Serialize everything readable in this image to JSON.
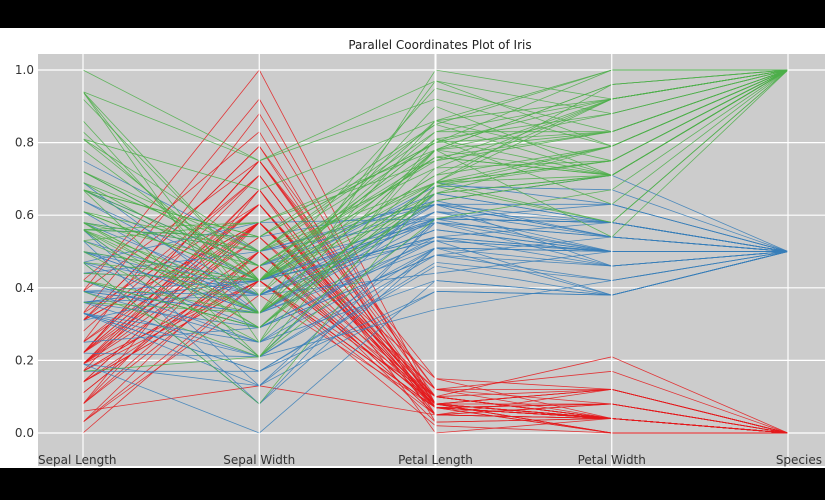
{
  "chart_data": {
    "type": "parallel-coordinates",
    "title": "Parallel Coordinates Plot of Iris",
    "axes": [
      "Sepal Length",
      "Sepal Width",
      "Petal Length",
      "Petal Width",
      "Species"
    ],
    "ylim": [
      0.0,
      1.0
    ],
    "yticks": [
      "0.0",
      "0.2",
      "0.4",
      "0.6",
      "0.8",
      "1.0"
    ],
    "grid": true,
    "series": [
      {
        "color": "#e41a1c",
        "species_value": 0.0,
        "lines": [
          [
            0.22,
            0.63,
            0.07,
            0.04,
            0.0
          ],
          [
            0.17,
            0.42,
            0.07,
            0.04,
            0.0
          ],
          [
            0.11,
            0.5,
            0.05,
            0.04,
            0.0
          ],
          [
            0.08,
            0.46,
            0.08,
            0.04,
            0.0
          ],
          [
            0.19,
            0.67,
            0.07,
            0.04,
            0.0
          ],
          [
            0.31,
            0.79,
            0.12,
            0.12,
            0.0
          ],
          [
            0.08,
            0.58,
            0.07,
            0.08,
            0.0
          ],
          [
            0.19,
            0.58,
            0.08,
            0.04,
            0.0
          ],
          [
            0.03,
            0.38,
            0.07,
            0.04,
            0.0
          ],
          [
            0.17,
            0.46,
            0.08,
            0.0,
            0.0
          ],
          [
            0.31,
            0.71,
            0.08,
            0.04,
            0.0
          ],
          [
            0.14,
            0.58,
            0.1,
            0.04,
            0.0
          ],
          [
            0.14,
            0.42,
            0.07,
            0.0,
            0.0
          ],
          [
            0.0,
            0.42,
            0.02,
            0.0,
            0.0
          ],
          [
            0.42,
            0.83,
            0.03,
            0.04,
            0.0
          ],
          [
            0.39,
            1.0,
            0.08,
            0.12,
            0.0
          ],
          [
            0.31,
            0.79,
            0.05,
            0.12,
            0.0
          ],
          [
            0.22,
            0.63,
            0.07,
            0.08,
            0.0
          ],
          [
            0.39,
            0.75,
            0.12,
            0.08,
            0.0
          ],
          [
            0.22,
            0.75,
            0.08,
            0.08,
            0.0
          ],
          [
            0.31,
            0.58,
            0.12,
            0.04,
            0.0
          ],
          [
            0.22,
            0.71,
            0.08,
            0.12,
            0.0
          ],
          [
            0.08,
            0.67,
            0.0,
            0.04,
            0.0
          ],
          [
            0.22,
            0.54,
            0.12,
            0.17,
            0.0
          ],
          [
            0.14,
            0.58,
            0.15,
            0.04,
            0.0
          ],
          [
            0.19,
            0.42,
            0.1,
            0.04,
            0.0
          ],
          [
            0.19,
            0.58,
            0.1,
            0.12,
            0.0
          ],
          [
            0.25,
            0.63,
            0.08,
            0.04,
            0.0
          ],
          [
            0.25,
            0.58,
            0.07,
            0.04,
            0.0
          ],
          [
            0.11,
            0.5,
            0.1,
            0.04,
            0.0
          ],
          [
            0.14,
            0.46,
            0.1,
            0.04,
            0.0
          ],
          [
            0.31,
            0.58,
            0.08,
            0.12,
            0.0
          ],
          [
            0.25,
            0.88,
            0.08,
            0.0,
            0.0
          ],
          [
            0.33,
            0.92,
            0.07,
            0.04,
            0.0
          ],
          [
            0.17,
            0.46,
            0.08,
            0.0,
            0.0
          ],
          [
            0.19,
            0.5,
            0.03,
            0.04,
            0.0
          ],
          [
            0.33,
            0.63,
            0.05,
            0.04,
            0.0
          ],
          [
            0.17,
            0.67,
            0.07,
            0.0,
            0.0
          ],
          [
            0.03,
            0.42,
            0.05,
            0.04,
            0.0
          ],
          [
            0.22,
            0.58,
            0.08,
            0.04,
            0.0
          ],
          [
            0.19,
            0.63,
            0.05,
            0.08,
            0.0
          ],
          [
            0.06,
            0.13,
            0.05,
            0.08,
            0.0
          ],
          [
            0.03,
            0.5,
            0.05,
            0.04,
            0.0
          ],
          [
            0.19,
            0.63,
            0.1,
            0.21,
            0.0
          ],
          [
            0.22,
            0.75,
            0.15,
            0.12,
            0.0
          ],
          [
            0.14,
            0.42,
            0.07,
            0.08,
            0.0
          ],
          [
            0.22,
            0.75,
            0.1,
            0.04,
            0.0
          ],
          [
            0.08,
            0.5,
            0.07,
            0.04,
            0.0
          ],
          [
            0.28,
            0.71,
            0.08,
            0.04,
            0.0
          ],
          [
            0.19,
            0.54,
            0.07,
            0.04,
            0.0
          ]
        ]
      },
      {
        "color": "#377eb8",
        "species_value": 0.5,
        "lines": [
          [
            0.75,
            0.5,
            0.63,
            0.54,
            0.5
          ],
          [
            0.58,
            0.5,
            0.59,
            0.58,
            0.5
          ],
          [
            0.72,
            0.46,
            0.66,
            0.58,
            0.5
          ],
          [
            0.33,
            0.13,
            0.51,
            0.5,
            0.5
          ],
          [
            0.61,
            0.33,
            0.61,
            0.58,
            0.5
          ],
          [
            0.39,
            0.33,
            0.59,
            0.5,
            0.5
          ],
          [
            0.56,
            0.54,
            0.63,
            0.63,
            0.5
          ],
          [
            0.17,
            0.17,
            0.39,
            0.38,
            0.5
          ],
          [
            0.64,
            0.38,
            0.61,
            0.5,
            0.5
          ],
          [
            0.25,
            0.29,
            0.49,
            0.54,
            0.5
          ],
          [
            0.19,
            0.0,
            0.42,
            0.38,
            0.5
          ],
          [
            0.44,
            0.42,
            0.54,
            0.58,
            0.5
          ],
          [
            0.47,
            0.08,
            0.51,
            0.38,
            0.5
          ],
          [
            0.5,
            0.38,
            0.63,
            0.54,
            0.5
          ],
          [
            0.36,
            0.38,
            0.44,
            0.5,
            0.5
          ],
          [
            0.67,
            0.46,
            0.58,
            0.54,
            0.5
          ],
          [
            0.36,
            0.42,
            0.59,
            0.58,
            0.5
          ],
          [
            0.42,
            0.29,
            0.53,
            0.38,
            0.5
          ],
          [
            0.53,
            0.08,
            0.59,
            0.58,
            0.5
          ],
          [
            0.36,
            0.21,
            0.49,
            0.42,
            0.5
          ],
          [
            0.44,
            0.5,
            0.64,
            0.71,
            0.5
          ],
          [
            0.5,
            0.33,
            0.51,
            0.5,
            0.5
          ],
          [
            0.56,
            0.21,
            0.66,
            0.58,
            0.5
          ],
          [
            0.5,
            0.33,
            0.63,
            0.46,
            0.5
          ],
          [
            0.58,
            0.38,
            0.56,
            0.5,
            0.5
          ],
          [
            0.64,
            0.42,
            0.58,
            0.54,
            0.5
          ],
          [
            0.69,
            0.33,
            0.64,
            0.54,
            0.5
          ],
          [
            0.67,
            0.42,
            0.68,
            0.67,
            0.5
          ],
          [
            0.47,
            0.38,
            0.59,
            0.58,
            0.5
          ],
          [
            0.39,
            0.25,
            0.42,
            0.38,
            0.5
          ],
          [
            0.33,
            0.17,
            0.47,
            0.42,
            0.5
          ],
          [
            0.33,
            0.17,
            0.46,
            0.38,
            0.5
          ],
          [
            0.42,
            0.29,
            0.49,
            0.46,
            0.5
          ],
          [
            0.47,
            0.29,
            0.69,
            0.63,
            0.5
          ],
          [
            0.31,
            0.42,
            0.59,
            0.58,
            0.5
          ],
          [
            0.47,
            0.58,
            0.59,
            0.63,
            0.5
          ],
          [
            0.67,
            0.46,
            0.63,
            0.58,
            0.5
          ],
          [
            0.56,
            0.13,
            0.58,
            0.5,
            0.5
          ],
          [
            0.36,
            0.42,
            0.53,
            0.5,
            0.5
          ],
          [
            0.33,
            0.21,
            0.51,
            0.5,
            0.5
          ],
          [
            0.33,
            0.25,
            0.58,
            0.46,
            0.5
          ],
          [
            0.5,
            0.42,
            0.61,
            0.54,
            0.5
          ],
          [
            0.42,
            0.25,
            0.51,
            0.46,
            0.5
          ],
          [
            0.19,
            0.13,
            0.39,
            0.38,
            0.5
          ],
          [
            0.36,
            0.29,
            0.54,
            0.5,
            0.5
          ],
          [
            0.39,
            0.42,
            0.54,
            0.46,
            0.5
          ],
          [
            0.39,
            0.38,
            0.54,
            0.5,
            0.5
          ],
          [
            0.53,
            0.38,
            0.56,
            0.5,
            0.5
          ],
          [
            0.22,
            0.21,
            0.34,
            0.42,
            0.5
          ],
          [
            0.39,
            0.33,
            0.53,
            0.5,
            0.5
          ]
        ]
      },
      {
        "color": "#4daf4a",
        "species_value": 1.0,
        "lines": [
          [
            0.56,
            0.54,
            0.85,
            1.0,
            1.0
          ],
          [
            0.42,
            0.29,
            0.69,
            0.75,
            1.0
          ],
          [
            0.78,
            0.42,
            0.83,
            0.83,
            1.0
          ],
          [
            0.56,
            0.38,
            0.78,
            0.71,
            1.0
          ],
          [
            0.61,
            0.42,
            0.81,
            0.88,
            1.0
          ],
          [
            0.92,
            0.42,
            0.95,
            0.83,
            1.0
          ],
          [
            0.17,
            0.21,
            0.59,
            0.67,
            1.0
          ],
          [
            0.83,
            0.38,
            0.9,
            0.71,
            1.0
          ],
          [
            0.67,
            0.21,
            0.81,
            0.71,
            1.0
          ],
          [
            0.81,
            0.67,
            0.86,
            1.0,
            1.0
          ],
          [
            0.61,
            0.5,
            0.69,
            0.79,
            1.0
          ],
          [
            0.58,
            0.29,
            0.73,
            0.75,
            1.0
          ],
          [
            0.69,
            0.42,
            0.76,
            0.83,
            1.0
          ],
          [
            0.39,
            0.21,
            0.68,
            0.79,
            1.0
          ],
          [
            0.42,
            0.33,
            0.69,
            0.96,
            1.0
          ],
          [
            0.58,
            0.5,
            0.73,
            0.92,
            1.0
          ],
          [
            0.61,
            0.42,
            0.76,
            0.71,
            1.0
          ],
          [
            0.94,
            0.75,
            0.97,
            0.88,
            1.0
          ],
          [
            0.94,
            0.25,
            1.0,
            0.92,
            1.0
          ],
          [
            0.47,
            0.08,
            0.68,
            0.58,
            1.0
          ],
          [
            0.72,
            0.5,
            0.8,
            0.92,
            1.0
          ],
          [
            0.36,
            0.33,
            0.66,
            0.79,
            1.0
          ],
          [
            0.94,
            0.33,
            0.97,
            0.79,
            1.0
          ],
          [
            0.56,
            0.29,
            0.66,
            0.71,
            1.0
          ],
          [
            0.67,
            0.54,
            0.8,
            0.83,
            1.0
          ],
          [
            0.81,
            0.5,
            0.85,
            0.71,
            1.0
          ],
          [
            0.53,
            0.33,
            0.64,
            0.71,
            1.0
          ],
          [
            0.5,
            0.42,
            0.66,
            0.71,
            1.0
          ],
          [
            0.58,
            0.33,
            0.78,
            0.83,
            1.0
          ],
          [
            0.81,
            0.42,
            0.81,
            0.63,
            1.0
          ],
          [
            0.86,
            0.33,
            0.86,
            0.75,
            1.0
          ],
          [
            1.0,
            0.75,
            0.92,
            0.79,
            1.0
          ],
          [
            0.58,
            0.33,
            0.78,
            0.88,
            1.0
          ],
          [
            0.56,
            0.33,
            0.69,
            0.58,
            1.0
          ],
          [
            0.5,
            0.25,
            0.78,
            0.54,
            1.0
          ],
          [
            0.94,
            0.42,
            0.86,
            0.92,
            1.0
          ],
          [
            0.56,
            0.58,
            0.78,
            0.96,
            1.0
          ],
          [
            0.58,
            0.46,
            0.76,
            0.71,
            1.0
          ],
          [
            0.47,
            0.42,
            0.64,
            0.71,
            1.0
          ],
          [
            0.72,
            0.46,
            0.75,
            0.83,
            1.0
          ],
          [
            0.67,
            0.46,
            0.78,
            0.96,
            1.0
          ],
          [
            0.72,
            0.46,
            0.69,
            0.92,
            1.0
          ],
          [
            0.42,
            0.29,
            0.69,
            0.75,
            1.0
          ],
          [
            0.69,
            0.5,
            0.83,
            0.92,
            1.0
          ],
          [
            0.67,
            0.54,
            0.8,
            1.0,
            1.0
          ],
          [
            0.67,
            0.42,
            0.71,
            0.92,
            1.0
          ],
          [
            0.56,
            0.21,
            0.68,
            0.75,
            1.0
          ],
          [
            0.61,
            0.42,
            0.71,
            0.79,
            1.0
          ],
          [
            0.53,
            0.58,
            0.75,
            0.92,
            1.0
          ],
          [
            0.44,
            0.42,
            0.69,
            0.71,
            1.0
          ]
        ]
      }
    ]
  }
}
